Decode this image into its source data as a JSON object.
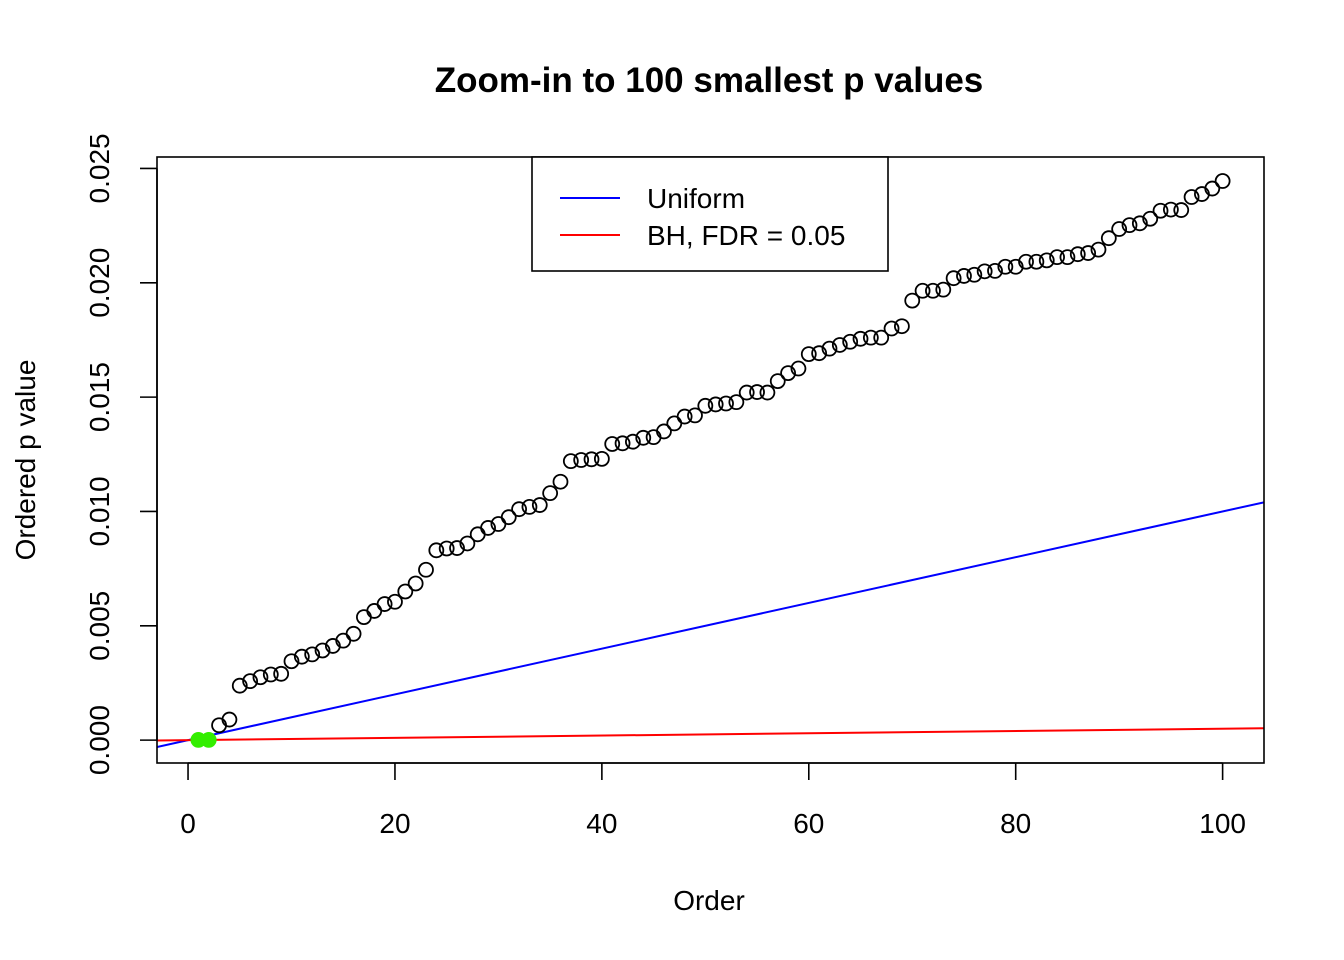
{
  "chart_data": {
    "type": "scatter",
    "title": "Zoom-in to 100 smallest p values",
    "xlabel": "Order",
    "ylabel": "Ordered p value",
    "xlim": [
      -3,
      104
    ],
    "ylim": [
      -0.001,
      0.0255
    ],
    "x_ticks": [
      0,
      20,
      40,
      60,
      80,
      100
    ],
    "x_tick_labels": [
      "0",
      "20",
      "40",
      "60",
      "80",
      "100"
    ],
    "y_ticks": [
      0,
      0.005,
      0.01,
      0.015,
      0.02,
      0.025
    ],
    "y_tick_labels": [
      "0.000",
      "0.005",
      "0.010",
      "0.015",
      "0.020",
      "0.025"
    ],
    "grid": false,
    "points": {
      "name": "Ordered p values",
      "x": [
        1,
        2,
        3,
        4,
        5,
        6,
        7,
        8,
        9,
        10,
        11,
        12,
        13,
        14,
        15,
        16,
        17,
        18,
        19,
        20,
        21,
        22,
        23,
        24,
        25,
        26,
        27,
        28,
        29,
        30,
        31,
        32,
        33,
        34,
        35,
        36,
        37,
        38,
        39,
        40,
        41,
        42,
        43,
        44,
        45,
        46,
        47,
        48,
        49,
        50,
        51,
        52,
        53,
        54,
        55,
        56,
        57,
        58,
        59,
        60,
        61,
        62,
        63,
        64,
        65,
        66,
        67,
        68,
        69,
        70,
        71,
        72,
        73,
        74,
        75,
        76,
        77,
        78,
        79,
        80,
        81,
        82,
        83,
        84,
        85,
        86,
        87,
        88,
        89,
        90,
        91,
        92,
        93,
        94,
        95,
        96,
        97,
        98,
        99,
        100
      ],
      "y": [
        1e-05,
        1e-05,
        0.00065,
        0.0009,
        0.00238,
        0.00258,
        0.00275,
        0.00287,
        0.0029,
        0.00345,
        0.00365,
        0.00375,
        0.00392,
        0.00412,
        0.00435,
        0.00465,
        0.00538,
        0.00565,
        0.00595,
        0.00605,
        0.0065,
        0.00685,
        0.00745,
        0.0083,
        0.00838,
        0.0084,
        0.0086,
        0.009,
        0.00928,
        0.00945,
        0.00975,
        0.0101,
        0.0102,
        0.01028,
        0.0108,
        0.0113,
        0.0122,
        0.01225,
        0.01228,
        0.0123,
        0.01295,
        0.01298,
        0.01305,
        0.01322,
        0.01325,
        0.0135,
        0.01385,
        0.01415,
        0.0142,
        0.01462,
        0.01468,
        0.01472,
        0.01478,
        0.0152,
        0.01522,
        0.0152,
        0.0157,
        0.01605,
        0.01625,
        0.01688,
        0.01692,
        0.01712,
        0.01728,
        0.01742,
        0.01755,
        0.0176,
        0.0176,
        0.018,
        0.0181,
        0.01922,
        0.01965,
        0.01965,
        0.0197,
        0.0202,
        0.0203,
        0.02035,
        0.0205,
        0.02052,
        0.0207,
        0.0207,
        0.02092,
        0.02092,
        0.02098,
        0.02112,
        0.02112,
        0.02125,
        0.0213,
        0.02145,
        0.02195,
        0.02235,
        0.02252,
        0.0226,
        0.0228,
        0.02315,
        0.0232,
        0.02318,
        0.02375,
        0.02388,
        0.02412,
        0.02445
      ],
      "significant_count": 2,
      "significant_color": "#33ee00"
    },
    "lines": [
      {
        "name": "Uniform",
        "color": "#0000ff",
        "slope": 0.0001,
        "intercept": 0
      },
      {
        "name": "BH, FDR = 0.05",
        "color": "#ff0000",
        "slope": 5e-06,
        "intercept": 0
      }
    ],
    "legend": {
      "placement": "top-center",
      "entries": [
        {
          "label": "Uniform",
          "color": "#0000ff"
        },
        {
          "label": "BH, FDR = 0.05",
          "color": "#ff0000"
        }
      ]
    }
  }
}
